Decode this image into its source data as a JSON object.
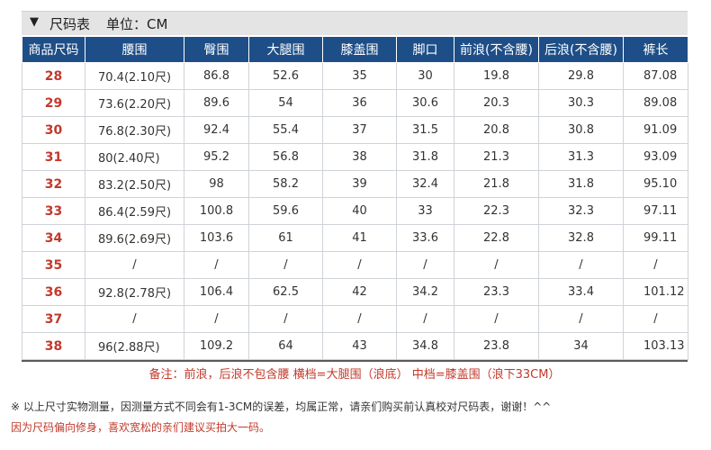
{
  "header": {
    "arrow": "▼",
    "title": "尺码表",
    "unit": "单位：CM"
  },
  "table": {
    "columns": [
      "商品尺码",
      "腰围",
      "臀围",
      "大腿围",
      "膝盖围",
      "脚口",
      "前浪(不含腰)",
      "后浪(不含腰)",
      "裤长"
    ],
    "rows": [
      [
        "28",
        "70.4(2.10尺)",
        "86.8",
        "52.6",
        "35",
        "30",
        "19.8",
        "29.8",
        "87.08"
      ],
      [
        "29",
        "73.6(2.20尺)",
        "89.6",
        "54",
        "36",
        "30.6",
        "20.3",
        "30.3",
        "89.08"
      ],
      [
        "30",
        "76.8(2.30尺)",
        "92.4",
        "55.4",
        "37",
        "31.5",
        "20.8",
        "30.8",
        "91.09"
      ],
      [
        "31",
        "80(2.40尺)",
        "95.2",
        "56.8",
        "38",
        "31.8",
        "21.3",
        "31.3",
        "93.09"
      ],
      [
        "32",
        "83.2(2.50尺)",
        "98",
        "58.2",
        "39",
        "32.4",
        "21.8",
        "31.8",
        "95.10"
      ],
      [
        "33",
        "86.4(2.59尺)",
        "100.8",
        "59.6",
        "40",
        "33",
        "22.3",
        "32.3",
        "97.11"
      ],
      [
        "34",
        "89.6(2.69尺)",
        "103.6",
        "61",
        "41",
        "33.6",
        "22.8",
        "32.8",
        "99.11"
      ],
      [
        "35",
        "/",
        "/",
        "/",
        "/",
        "/",
        "/",
        "/",
        "/"
      ],
      [
        "36",
        "92.8(2.78尺)",
        "106.4",
        "62.5",
        "42",
        "34.2",
        "23.3",
        "33.4",
        "101.12"
      ],
      [
        "37",
        "/",
        "/",
        "/",
        "/",
        "/",
        "/",
        "/",
        "/"
      ],
      [
        "38",
        "96(2.88尺)",
        "109.2",
        "64",
        "43",
        "34.8",
        "23.8",
        "34",
        "103.13"
      ]
    ]
  },
  "notes": {
    "remark": "备注：前浪，后浪不包含腰 横档=大腿围（浪底） 中档=膝盖围（浪下33CM）",
    "disclaimer": "※ 以上尺寸实物测量，因测量方式不同会有1-3CM的误差，均属正常，请亲们购买前认真校对尺码表，谢谢！^^",
    "advice": "因为尺码偏向修身，喜欢宽松的亲们建议买拍大一码。"
  }
}
